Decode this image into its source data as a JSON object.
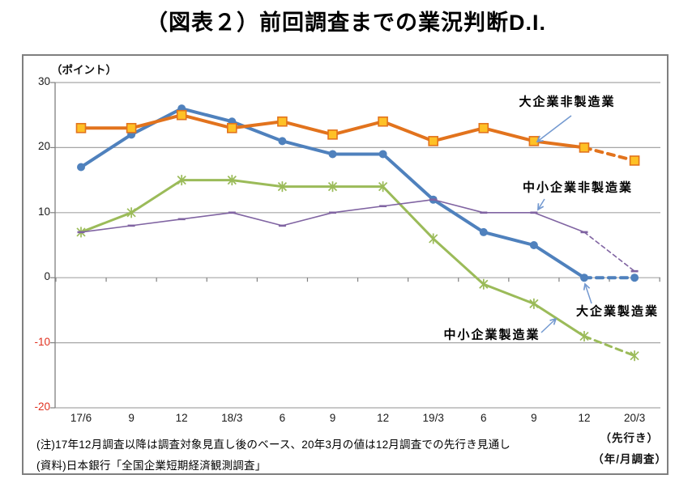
{
  "title": "（図表２）前回調査までの業況判断D.I.",
  "chart": {
    "unit_label": "（ポイント）",
    "forecast_label": "（先行き）",
    "axis_unit_label": "（年/月調査）",
    "notes": [
      "(注)17年12月調査以降は調査対象見直し後のベース、20年3月の値は12月調査での先行き見通し",
      "(資料)日本銀行「全国企業短期経済観測調査」"
    ]
  },
  "chart_data": {
    "type": "line",
    "categories": [
      "17/6",
      "9",
      "12",
      "18/3",
      "6",
      "9",
      "12",
      "19/3",
      "6",
      "9",
      "12",
      "20/3"
    ],
    "last_point_is_forecast": true,
    "series": [
      {
        "name": "大企業製造業",
        "color": "#4F81BD",
        "marker": "circle",
        "line_width": 4,
        "values": [
          17,
          22,
          26,
          24,
          21,
          19,
          19,
          12,
          7,
          5,
          0,
          0
        ]
      },
      {
        "name": "大企業非製造業",
        "color": "#E2731D",
        "marker": "square",
        "marker_fill": "#FEC126",
        "line_width": 4,
        "values": [
          23,
          23,
          25,
          23,
          24,
          22,
          24,
          21,
          23,
          21,
          20,
          18
        ]
      },
      {
        "name": "中小企業製造業",
        "color": "#9BBB59",
        "marker": "asterisk",
        "line_width": 3,
        "values": [
          7,
          10,
          15,
          15,
          14,
          14,
          14,
          6,
          -1,
          -4,
          -9,
          -12
        ]
      },
      {
        "name": "中小企業非製造業",
        "color": "#8064A2",
        "marker": "dash",
        "line_width": 1.6,
        "values": [
          7,
          8,
          9,
          10,
          8,
          10,
          11,
          12,
          10,
          10,
          7,
          1
        ]
      }
    ],
    "ylim": [
      -20,
      30
    ],
    "yticks": [
      30,
      20,
      10,
      0,
      -10,
      -20
    ],
    "grid": true,
    "legend_position": "annotations-on-plot",
    "annotations": [
      {
        "label": "大企業非製造業"
      },
      {
        "label": "中小企業非製造業"
      },
      {
        "label": "大企業製造業"
      },
      {
        "label": "中小企業製造業"
      }
    ],
    "colors": {
      "grid": "#A6A6A6",
      "axis": "#808080",
      "negative_tick": "#E0301E",
      "arrow": "#7399D0"
    }
  }
}
